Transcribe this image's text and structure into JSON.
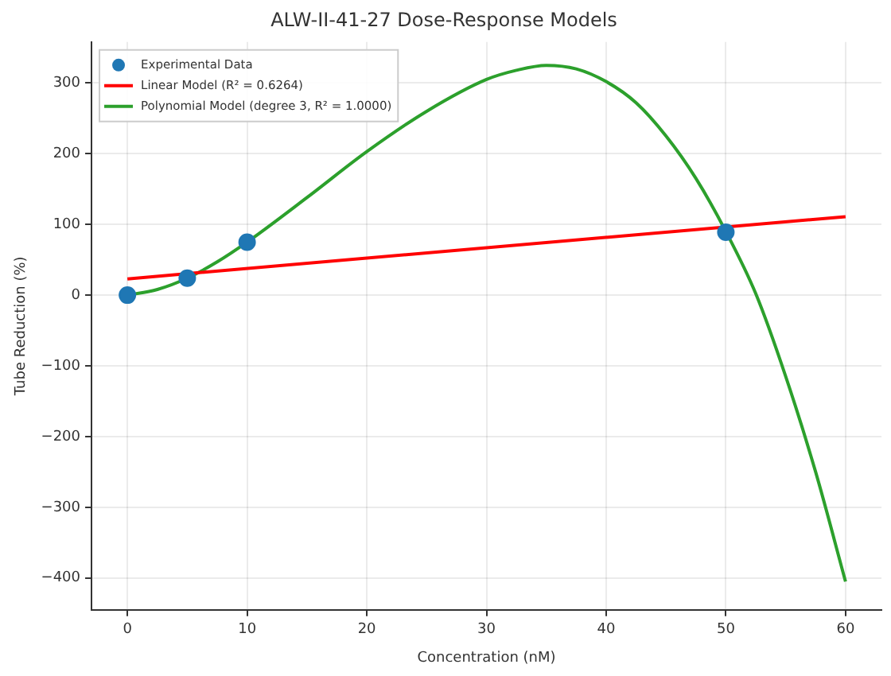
{
  "chart_data": {
    "type": "line",
    "title": "ALW-II-41-27 Dose-Response Models",
    "xlabel": "Concentration (nM)",
    "ylabel": "Tube Reduction (%)",
    "xlim": [
      -3,
      63
    ],
    "xticks": [
      0,
      10,
      20,
      30,
      40,
      50,
      60
    ],
    "ylim": [
      -445,
      358
    ],
    "yticks": [
      {
        "value": -400,
        "label": "−400"
      },
      {
        "value": -300,
        "label": "−300"
      },
      {
        "value": -200,
        "label": "−200"
      },
      {
        "value": -100,
        "label": "−100"
      },
      0,
      100,
      200,
      300
    ],
    "grid": true,
    "legend": "top left",
    "series": [
      {
        "name": "Experimental Data",
        "type": "scatter",
        "marker": "circle",
        "color": "#1f77b4",
        "x": [
          0,
          5,
          10,
          50
        ],
        "values": [
          0,
          24,
          75,
          89
        ]
      },
      {
        "name": "Linear Model (R² = 0.6264)",
        "type": "line",
        "marker": "none",
        "color": "#ff0000",
        "x": [
          0,
          60
        ],
        "values": [
          23,
          111
        ]
      },
      {
        "name": "Polynomial Model (degree 3, R² = 1.0000)",
        "type": "line",
        "marker": "none",
        "color": "#2ca02c",
        "x": [
          0,
          2.5,
          5,
          7.5,
          10,
          15,
          20,
          25,
          30,
          32.5,
          35,
          37.5,
          40,
          42.5,
          45,
          47.5,
          50,
          52.5,
          55,
          57.5,
          60
        ],
        "values": [
          0,
          8,
          24,
          47,
          75,
          138,
          203,
          260,
          305,
          318,
          325,
          320,
          302,
          272,
          225,
          165,
          90,
          2,
          -115,
          -250,
          -405
        ]
      }
    ]
  }
}
